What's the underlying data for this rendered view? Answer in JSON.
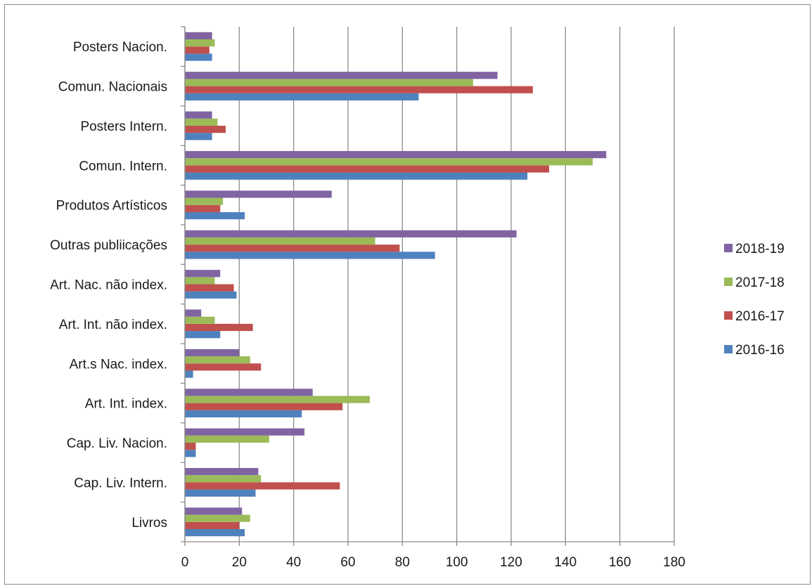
{
  "chart_data": {
    "type": "bar",
    "orientation": "horizontal",
    "title": "",
    "xlabel": "",
    "ylabel": "",
    "categories": [
      "Livros",
      "Cap. Liv. Intern.",
      "Cap. Liv. Nacion.",
      "Art. Int. index.",
      "Art.s Nac. index.",
      "Art. Int. não index.",
      "Art. Nac. não index.",
      "Outras publiicações",
      "Produtos Artísticos",
      "Comun. Intern.",
      "Posters Intern.",
      "Comun. Nacionais",
      "Posters Nacion."
    ],
    "series": [
      {
        "name": "2016-16",
        "color": "#4f81bd",
        "values": [
          22,
          26,
          4,
          43,
          3,
          13,
          19,
          92,
          22,
          126,
          10,
          86,
          10
        ]
      },
      {
        "name": "2016-17",
        "color": "#c0504d",
        "values": [
          20,
          57,
          4,
          58,
          28,
          25,
          18,
          79,
          13,
          134,
          15,
          128,
          9
        ]
      },
      {
        "name": "2017-18",
        "color": "#9bbb59",
        "values": [
          24,
          28,
          31,
          68,
          24,
          11,
          11,
          70,
          14,
          150,
          12,
          106,
          11
        ]
      },
      {
        "name": "2018-19",
        "color": "#8064a2",
        "values": [
          21,
          27,
          44,
          47,
          20,
          6,
          13,
          122,
          54,
          155,
          10,
          115,
          10
        ]
      }
    ],
    "xlim": [
      0,
      180
    ],
    "xticks": [
      0,
      20,
      40,
      60,
      80,
      100,
      120,
      140,
      160,
      180
    ],
    "grid": "vertical",
    "legend_position": "right",
    "legend_order": [
      "2018-19",
      "2017-18",
      "2016-17",
      "2016-16"
    ]
  }
}
